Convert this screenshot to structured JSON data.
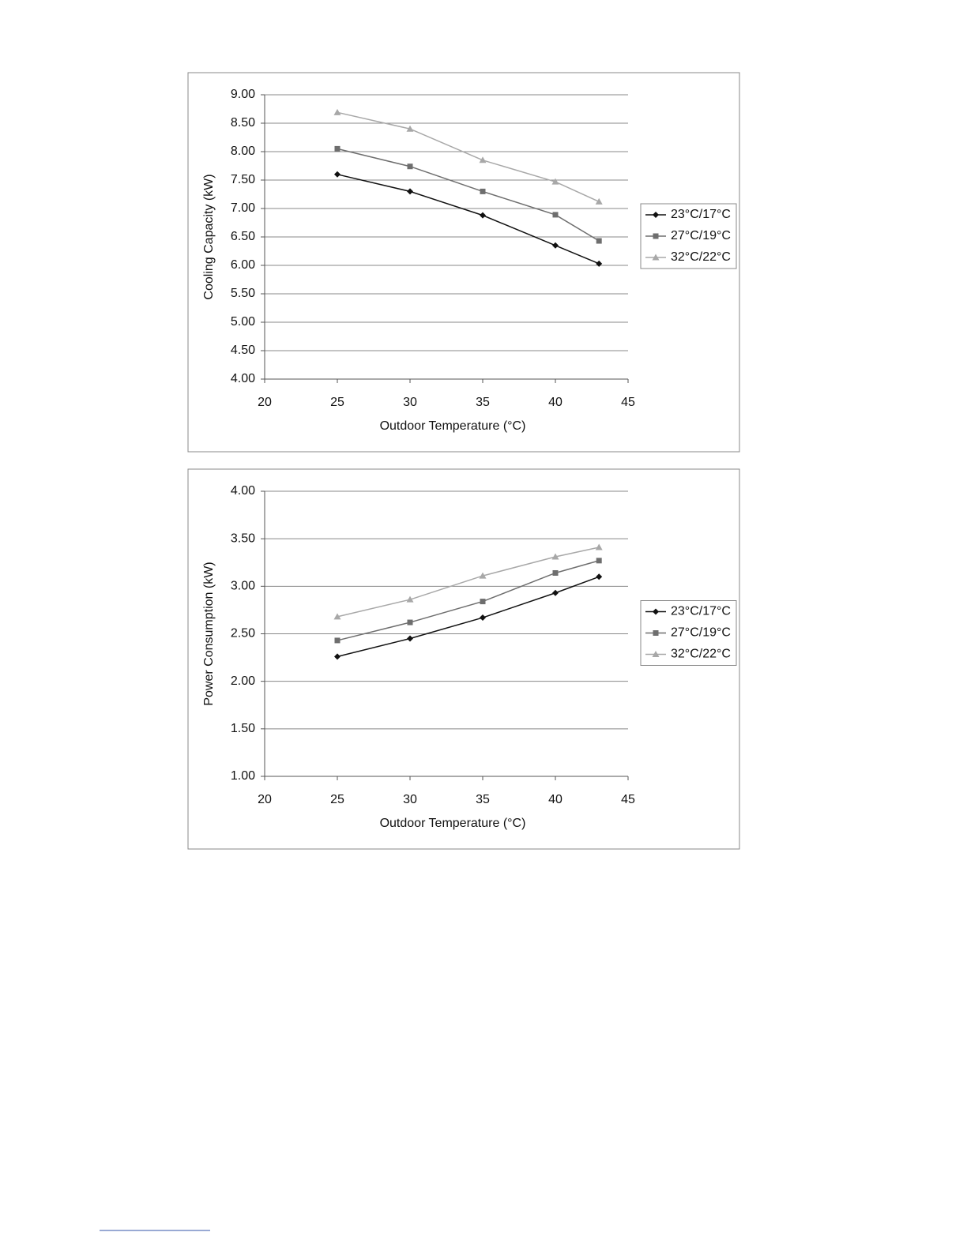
{
  "chart_data": [
    {
      "type": "line",
      "y_label": "Cooling Capacity (kW)",
      "x_label": "Outdoor Temperature (°C)",
      "x": [
        25,
        30,
        35,
        40,
        43
      ],
      "series": [
        {
          "name": "23°C/17°C",
          "color": "#111111",
          "marker": "diamond",
          "values": [
            7.6,
            7.3,
            6.88,
            6.35,
            6.03
          ]
        },
        {
          "name": "27°C/19°C",
          "color": "#6e6e6e",
          "marker": "square",
          "values": [
            8.05,
            7.74,
            7.3,
            6.89,
            6.43
          ]
        },
        {
          "name": "32°C/22°C",
          "color": "#a8a8a8",
          "marker": "triangle",
          "values": [
            8.69,
            8.4,
            7.85,
            7.47,
            7.12
          ]
        }
      ],
      "xlim": [
        20,
        45
      ],
      "xticks": [
        20,
        25,
        30,
        35,
        40,
        45
      ],
      "ylim": [
        4,
        9
      ],
      "yticks": [
        {
          "value": 4,
          "label": "4.00"
        },
        {
          "value": 4.5,
          "label": "4.50"
        },
        {
          "value": 5,
          "label": "5.00"
        },
        {
          "value": 5.5,
          "label": "5.50"
        },
        {
          "value": 6,
          "label": "6.00"
        },
        {
          "value": 6.5,
          "label": "6.50"
        },
        {
          "value": 7,
          "label": "7.00"
        },
        {
          "value": 7.5,
          "label": "7.50"
        },
        {
          "value": 8,
          "label": "8.00"
        },
        {
          "value": 8.5,
          "label": "8.50"
        },
        {
          "value": 9,
          "label": "9.00"
        }
      ],
      "grid": true,
      "legend": "right"
    },
    {
      "type": "line",
      "y_label": "Power Consumption (kW)",
      "x_label": "Outdoor Temperature (°C)",
      "x": [
        25,
        30,
        35,
        40,
        43
      ],
      "series": [
        {
          "name": "23°C/17°C",
          "color": "#111111",
          "marker": "diamond",
          "values": [
            2.26,
            2.45,
            2.67,
            2.93,
            3.1
          ]
        },
        {
          "name": "27°C/19°C",
          "color": "#6e6e6e",
          "marker": "square",
          "values": [
            2.43,
            2.62,
            2.84,
            3.14,
            3.27
          ]
        },
        {
          "name": "32°C/22°C",
          "color": "#a8a8a8",
          "marker": "triangle",
          "values": [
            2.68,
            2.86,
            3.11,
            3.31,
            3.41
          ]
        }
      ],
      "xlim": [
        20,
        45
      ],
      "xticks": [
        20,
        25,
        30,
        35,
        40,
        45
      ],
      "ylim": [
        1,
        4
      ],
      "yticks": [
        {
          "value": 1,
          "label": "1.00"
        },
        {
          "value": 1.5,
          "label": "1.50"
        },
        {
          "value": 2,
          "label": "2.00"
        },
        {
          "value": 2.5,
          "label": "2.50"
        },
        {
          "value": 3,
          "label": "3.00"
        },
        {
          "value": 3.5,
          "label": "3.50"
        },
        {
          "value": 4,
          "label": "4.00"
        }
      ],
      "grid": true,
      "legend": "right"
    }
  ]
}
